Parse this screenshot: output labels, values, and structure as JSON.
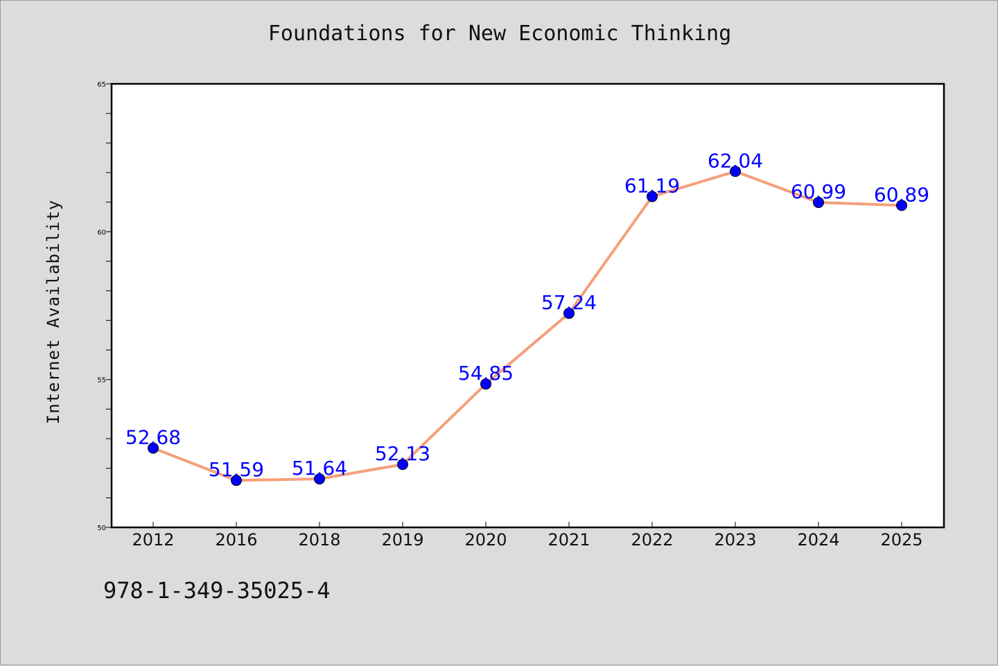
{
  "title": "Foundations for New Economic Thinking",
  "isbn": "978-1-349-35025-4",
  "colors": {
    "background": "#dcdcdc",
    "plot_background": "#ffffff",
    "line": "#f4a07a",
    "marker": "#0000ff",
    "data_label": "#0000ff"
  },
  "chart_data": {
    "type": "line",
    "title": "Foundations for New Economic Thinking",
    "xlabel": "",
    "ylabel": "Internet Availability",
    "categories": [
      "2012",
      "2016",
      "2018",
      "2019",
      "2020",
      "2021",
      "2022",
      "2023",
      "2024",
      "2025"
    ],
    "values": [
      52.68,
      51.59,
      51.64,
      52.13,
      54.85,
      57.24,
      61.19,
      62.04,
      60.99,
      60.89
    ],
    "data_labels": [
      "52.68",
      "51.59",
      "51.64",
      "52.13",
      "54.85",
      "57.24",
      "61.19",
      "62.04",
      "60.99",
      "60.89"
    ],
    "ylim": [
      50,
      65
    ],
    "yticks": [
      "50",
      "55",
      "60",
      "65"
    ],
    "minor_tick_step": 1,
    "grid": false,
    "legend": "none"
  }
}
